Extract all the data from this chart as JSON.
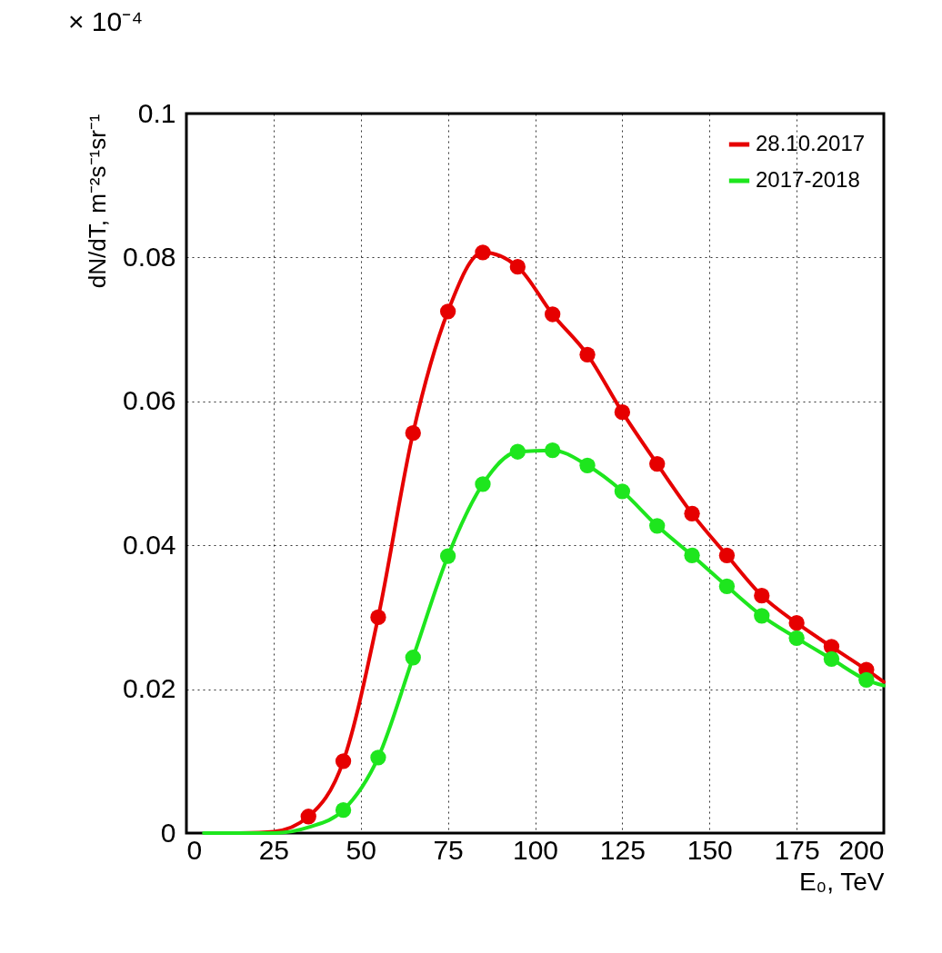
{
  "chart_data": {
    "type": "line",
    "xlabel": "E₀, TeV",
    "ylabel": "dN/dT, m⁻²s⁻¹sr⁻¹",
    "annotations": [
      "× 10⁻⁴"
    ],
    "xlim": [
      0,
      200
    ],
    "xticks": [
      0,
      25,
      50,
      75,
      100,
      125,
      150,
      175,
      200
    ],
    "ylim": [
      0,
      0.1
    ],
    "yticks": [
      0,
      0.02,
      0.04,
      0.06,
      0.08,
      0.1
    ],
    "grid": true,
    "legend": "top right",
    "line_style": "solid",
    "series": [
      {
        "name": "28.10.2017",
        "color": "#e60000",
        "type": "line",
        "marker": "none",
        "x": [
          15,
          25,
          35,
          45,
          55,
          65,
          75,
          85,
          95,
          105,
          115,
          125,
          135,
          145,
          155,
          165,
          175,
          185,
          195,
          200
        ],
        "values": [
          0,
          0.0002,
          0.0023,
          0.01,
          0.03,
          0.0556,
          0.0725,
          0.0807,
          0.0787,
          0.0721,
          0.0665,
          0.0585,
          0.0513,
          0.0444,
          0.0386,
          0.033,
          0.0292,
          0.0259,
          0.0227,
          0.021
        ]
      },
      {
        "name": "2017-2018",
        "color": "#1ee61e",
        "type": "line",
        "marker": "none",
        "x": [
          5,
          15,
          25,
          35,
          45,
          55,
          65,
          75,
          85,
          95,
          105,
          115,
          125,
          135,
          145,
          155,
          165,
          175,
          185,
          195,
          200
        ],
        "values": [
          0,
          0,
          0,
          0.0008,
          0.0032,
          0.0105,
          0.0244,
          0.0385,
          0.0485,
          0.053,
          0.0532,
          0.0511,
          0.0475,
          0.0427,
          0.0386,
          0.0343,
          0.0302,
          0.0271,
          0.0242,
          0.0213,
          0.0205
        ]
      },
      {
        "color": "#e60000",
        "type": "scatter",
        "marker": "circle",
        "x": [
          35,
          45,
          55,
          65,
          75,
          85,
          95,
          105,
          115,
          125,
          135,
          145,
          155,
          165,
          175,
          185,
          195
        ],
        "values": [
          0.0023,
          0.01,
          0.03,
          0.0556,
          0.0725,
          0.0807,
          0.0787,
          0.0721,
          0.0665,
          0.0585,
          0.0513,
          0.0444,
          0.0386,
          0.033,
          0.0292,
          0.0259,
          0.0227
        ]
      },
      {
        "color": "#1ee61e",
        "type": "scatter",
        "marker": "circle",
        "x": [
          45,
          55,
          65,
          75,
          85,
          95,
          105,
          115,
          125,
          135,
          145,
          155,
          165,
          175,
          185,
          195
        ],
        "values": [
          0.0032,
          0.0105,
          0.0244,
          0.0385,
          0.0485,
          0.053,
          0.0532,
          0.0511,
          0.0475,
          0.0427,
          0.0386,
          0.0343,
          0.0302,
          0.0271,
          0.0242,
          0.0213
        ]
      }
    ]
  }
}
